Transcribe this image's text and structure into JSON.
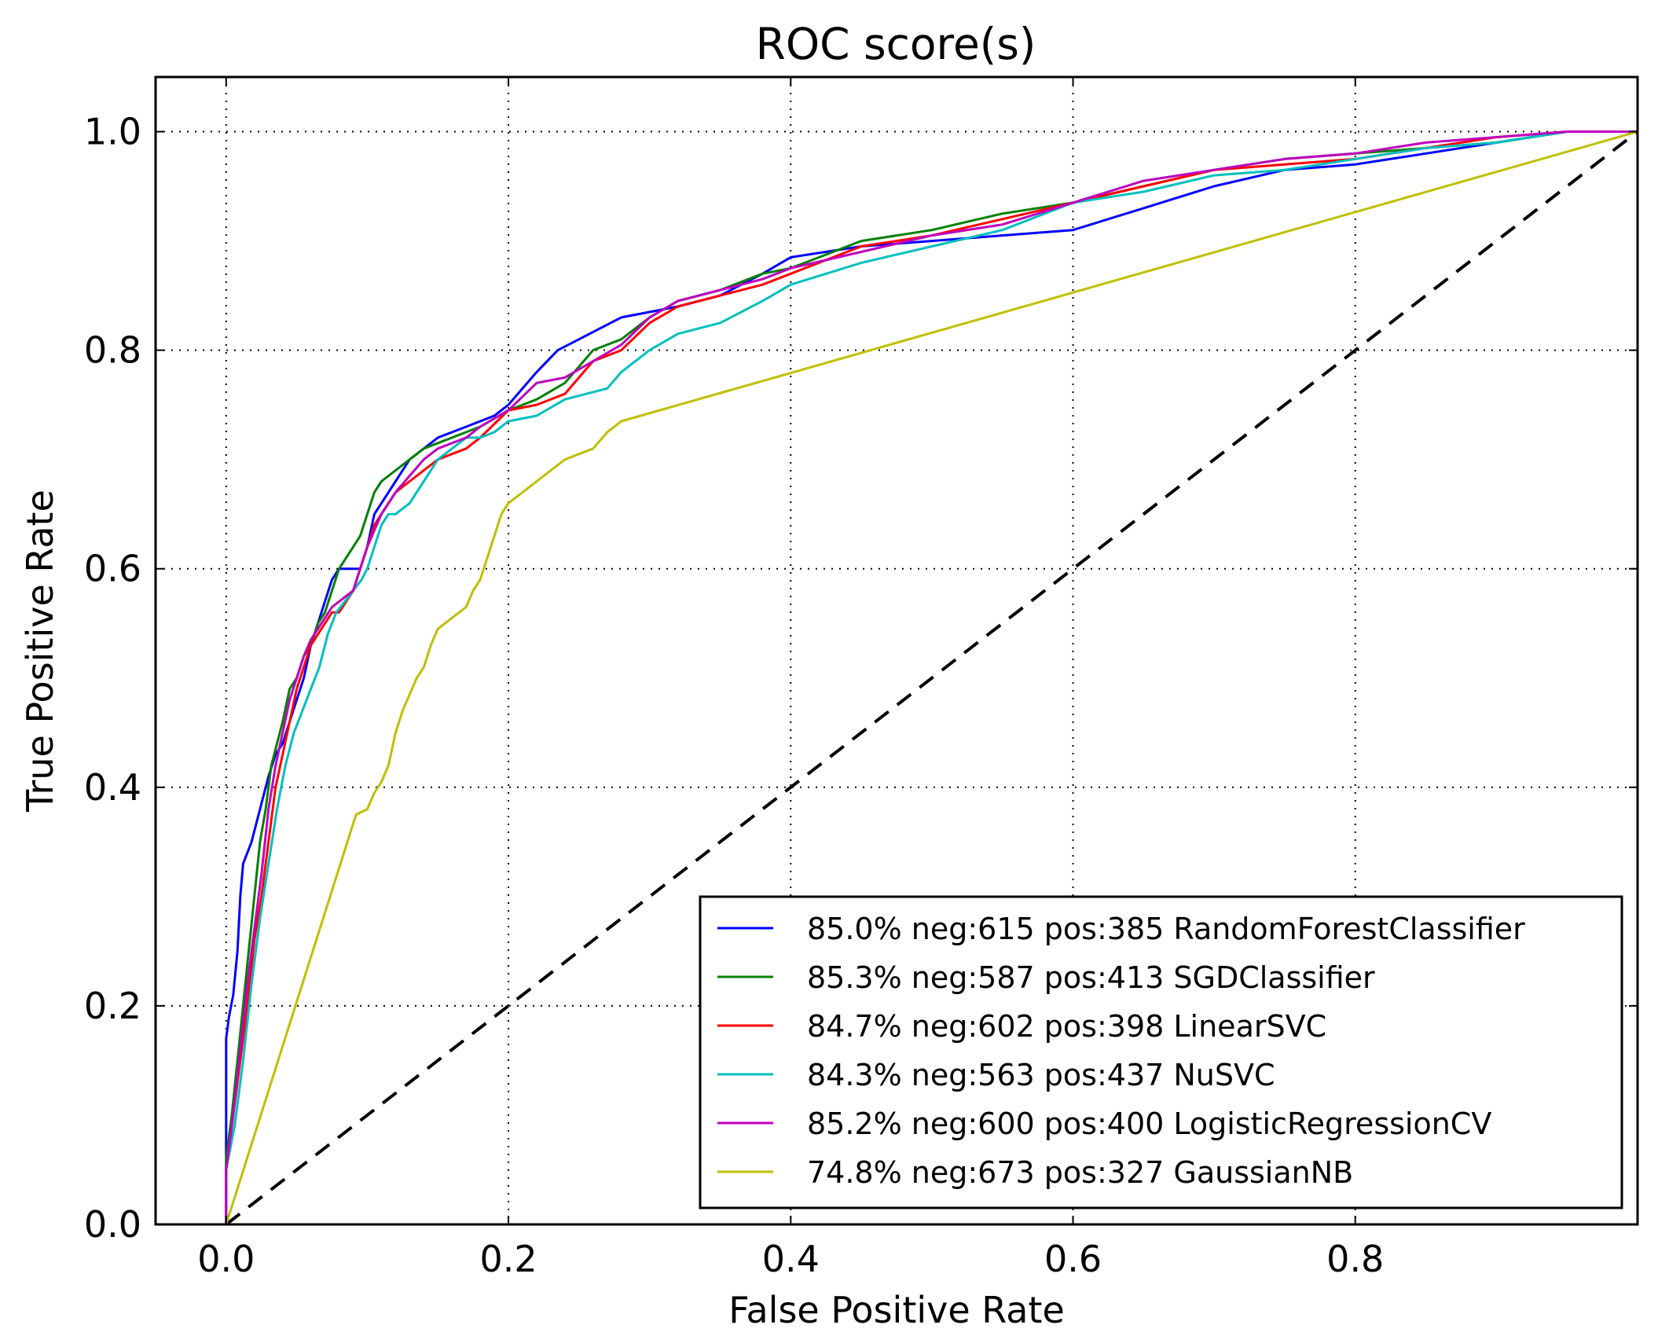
{
  "chart_data": {
    "type": "line",
    "title": "ROC score(s)",
    "xlabel": "False Positive Rate",
    "ylabel": "True Positive Rate",
    "xlim": [
      -0.05,
      1.0
    ],
    "ylim": [
      0.0,
      1.05
    ],
    "xticks": [
      0.0,
      0.2,
      0.4,
      0.6,
      0.8
    ],
    "xtick_labels": [
      "0.0",
      "0.2",
      "0.4",
      "0.6",
      "0.8"
    ],
    "yticks": [
      0.0,
      0.2,
      0.4,
      0.6,
      0.8,
      1.0
    ],
    "ytick_labels": [
      "0.0",
      "0.2",
      "0.4",
      "0.6",
      "0.8",
      "1.0"
    ],
    "grid": true,
    "legend_position": "lower-right",
    "diagonal": {
      "x": [
        0,
        1
      ],
      "y": [
        0,
        1
      ],
      "color": "#000000",
      "dashed": true
    },
    "series": [
      {
        "name": "85.0% neg:615 pos:385 RandomForestClassifier",
        "color": "#0000ff",
        "x": [
          0,
          0,
          0.002,
          0.005,
          0.008,
          0.01,
          0.012,
          0.015,
          0.018,
          0.022,
          0.026,
          0.03,
          0.035,
          0.04,
          0.045,
          0.05,
          0.055,
          0.06,
          0.065,
          0.07,
          0.075,
          0.08,
          0.085,
          0.09,
          0.095,
          0.1,
          0.105,
          0.11,
          0.115,
          0.12,
          0.13,
          0.14,
          0.15,
          0.17,
          0.19,
          0.2,
          0.22,
          0.235,
          0.25,
          0.28,
          0.3,
          0.32,
          0.35,
          0.38,
          0.4,
          0.45,
          0.5,
          0.55,
          0.6,
          0.65,
          0.7,
          0.75,
          0.8,
          0.85,
          0.9,
          0.95,
          1.0
        ],
        "y": [
          0,
          0.17,
          0.19,
          0.21,
          0.25,
          0.3,
          0.33,
          0.34,
          0.35,
          0.37,
          0.39,
          0.41,
          0.43,
          0.44,
          0.46,
          0.48,
          0.5,
          0.53,
          0.55,
          0.57,
          0.59,
          0.6,
          0.6,
          0.6,
          0.6,
          0.62,
          0.65,
          0.66,
          0.67,
          0.68,
          0.7,
          0.71,
          0.72,
          0.73,
          0.74,
          0.75,
          0.78,
          0.8,
          0.81,
          0.83,
          0.835,
          0.84,
          0.85,
          0.87,
          0.885,
          0.895,
          0.9,
          0.905,
          0.91,
          0.93,
          0.95,
          0.965,
          0.97,
          0.98,
          0.99,
          1.0,
          1.0
        ]
      },
      {
        "name": "85.3% neg:587 pos:413 SGDClassifier",
        "color": "#008000",
        "x": [
          0,
          0,
          0.004,
          0.008,
          0.012,
          0.016,
          0.02,
          0.024,
          0.028,
          0.032,
          0.036,
          0.04,
          0.045,
          0.05,
          0.055,
          0.06,
          0.065,
          0.07,
          0.075,
          0.08,
          0.085,
          0.09,
          0.095,
          0.1,
          0.105,
          0.11,
          0.12,
          0.13,
          0.14,
          0.15,
          0.16,
          0.17,
          0.18,
          0.2,
          0.22,
          0.24,
          0.26,
          0.28,
          0.3,
          0.32,
          0.35,
          0.38,
          0.4,
          0.45,
          0.5,
          0.55,
          0.6,
          0.65,
          0.7,
          0.75,
          0.8,
          0.85,
          0.9,
          0.95,
          1.0
        ],
        "y": [
          0,
          0.06,
          0.1,
          0.15,
          0.2,
          0.25,
          0.3,
          0.35,
          0.38,
          0.42,
          0.44,
          0.46,
          0.49,
          0.5,
          0.52,
          0.53,
          0.55,
          0.56,
          0.58,
          0.6,
          0.61,
          0.62,
          0.63,
          0.65,
          0.67,
          0.68,
          0.69,
          0.7,
          0.71,
          0.715,
          0.72,
          0.725,
          0.73,
          0.745,
          0.755,
          0.77,
          0.8,
          0.81,
          0.83,
          0.845,
          0.855,
          0.87,
          0.875,
          0.9,
          0.91,
          0.925,
          0.935,
          0.95,
          0.965,
          0.975,
          0.98,
          0.985,
          0.99,
          1.0,
          1.0
        ]
      },
      {
        "name": "84.7% neg:602 pos:398 LinearSVC",
        "color": "#ff0000",
        "x": [
          0,
          0,
          0.005,
          0.01,
          0.015,
          0.02,
          0.025,
          0.03,
          0.035,
          0.04,
          0.045,
          0.05,
          0.055,
          0.06,
          0.065,
          0.07,
          0.075,
          0.08,
          0.085,
          0.09,
          0.095,
          0.1,
          0.105,
          0.11,
          0.12,
          0.13,
          0.14,
          0.15,
          0.16,
          0.17,
          0.18,
          0.2,
          0.22,
          0.24,
          0.26,
          0.28,
          0.3,
          0.32,
          0.35,
          0.38,
          0.4,
          0.45,
          0.5,
          0.55,
          0.6,
          0.65,
          0.7,
          0.75,
          0.8,
          0.85,
          0.9,
          0.95,
          1.0
        ],
        "y": [
          0,
          0.05,
          0.1,
          0.15,
          0.2,
          0.26,
          0.3,
          0.35,
          0.4,
          0.43,
          0.46,
          0.49,
          0.51,
          0.53,
          0.54,
          0.55,
          0.56,
          0.56,
          0.57,
          0.58,
          0.6,
          0.62,
          0.64,
          0.65,
          0.67,
          0.68,
          0.69,
          0.7,
          0.705,
          0.71,
          0.72,
          0.745,
          0.75,
          0.76,
          0.79,
          0.8,
          0.825,
          0.84,
          0.85,
          0.86,
          0.87,
          0.895,
          0.905,
          0.92,
          0.935,
          0.95,
          0.965,
          0.97,
          0.975,
          0.985,
          0.995,
          1.0,
          1.0
        ]
      },
      {
        "name": "84.3% neg:563 pos:437 NuSVC",
        "color": "#00bfbf",
        "x": [
          0,
          0,
          0.006,
          0.012,
          0.018,
          0.024,
          0.03,
          0.036,
          0.042,
          0.048,
          0.054,
          0.06,
          0.066,
          0.072,
          0.078,
          0.084,
          0.09,
          0.096,
          0.1,
          0.105,
          0.11,
          0.115,
          0.12,
          0.13,
          0.14,
          0.15,
          0.16,
          0.17,
          0.18,
          0.19,
          0.2,
          0.22,
          0.24,
          0.27,
          0.28,
          0.3,
          0.32,
          0.35,
          0.38,
          0.4,
          0.45,
          0.5,
          0.55,
          0.6,
          0.65,
          0.7,
          0.75,
          0.8,
          0.85,
          0.9,
          0.95,
          1.0
        ],
        "y": [
          0,
          0.05,
          0.09,
          0.15,
          0.22,
          0.28,
          0.33,
          0.38,
          0.42,
          0.45,
          0.47,
          0.49,
          0.51,
          0.54,
          0.56,
          0.57,
          0.58,
          0.59,
          0.6,
          0.62,
          0.64,
          0.65,
          0.65,
          0.66,
          0.68,
          0.7,
          0.71,
          0.72,
          0.72,
          0.725,
          0.735,
          0.74,
          0.755,
          0.765,
          0.78,
          0.8,
          0.815,
          0.825,
          0.845,
          0.86,
          0.88,
          0.895,
          0.91,
          0.935,
          0.945,
          0.96,
          0.965,
          0.975,
          0.985,
          0.99,
          1.0,
          1.0
        ]
      },
      {
        "name": "85.2% neg:600 pos:400 LogisticRegressionCV",
        "color": "#bf00bf",
        "x": [
          0,
          0,
          0.005,
          0.01,
          0.015,
          0.02,
          0.025,
          0.03,
          0.035,
          0.04,
          0.045,
          0.05,
          0.055,
          0.06,
          0.065,
          0.07,
          0.075,
          0.08,
          0.085,
          0.09,
          0.095,
          0.1,
          0.105,
          0.11,
          0.12,
          0.13,
          0.14,
          0.15,
          0.16,
          0.17,
          0.18,
          0.2,
          0.22,
          0.24,
          0.26,
          0.28,
          0.3,
          0.32,
          0.35,
          0.38,
          0.4,
          0.45,
          0.5,
          0.55,
          0.6,
          0.65,
          0.7,
          0.75,
          0.8,
          0.85,
          0.9,
          0.95,
          1.0
        ],
        "y": [
          0,
          0.05,
          0.1,
          0.16,
          0.22,
          0.27,
          0.32,
          0.38,
          0.42,
          0.45,
          0.48,
          0.5,
          0.52,
          0.535,
          0.545,
          0.555,
          0.565,
          0.57,
          0.575,
          0.58,
          0.6,
          0.62,
          0.635,
          0.65,
          0.67,
          0.685,
          0.7,
          0.71,
          0.715,
          0.72,
          0.73,
          0.745,
          0.77,
          0.775,
          0.79,
          0.805,
          0.83,
          0.845,
          0.855,
          0.865,
          0.875,
          0.89,
          0.905,
          0.915,
          0.935,
          0.955,
          0.965,
          0.975,
          0.98,
          0.99,
          0.995,
          1.0,
          1.0
        ]
      },
      {
        "name": "74.8% neg:673 pos:327 GaussianNB",
        "color": "#bfbf00",
        "x": [
          0,
          0.092,
          0.1,
          0.105,
          0.11,
          0.115,
          0.12,
          0.125,
          0.13,
          0.135,
          0.14,
          0.145,
          0.15,
          0.16,
          0.17,
          0.175,
          0.18,
          0.185,
          0.19,
          0.195,
          0.2,
          0.205,
          0.21,
          0.22,
          0.23,
          0.24,
          0.25,
          0.26,
          0.27,
          0.28,
          1.0
        ],
        "y": [
          0,
          0.375,
          0.38,
          0.395,
          0.405,
          0.42,
          0.45,
          0.47,
          0.485,
          0.5,
          0.51,
          0.53,
          0.545,
          0.555,
          0.565,
          0.58,
          0.59,
          0.61,
          0.63,
          0.65,
          0.66,
          0.665,
          0.67,
          0.68,
          0.69,
          0.7,
          0.705,
          0.71,
          0.725,
          0.735,
          1.0
        ]
      }
    ]
  }
}
